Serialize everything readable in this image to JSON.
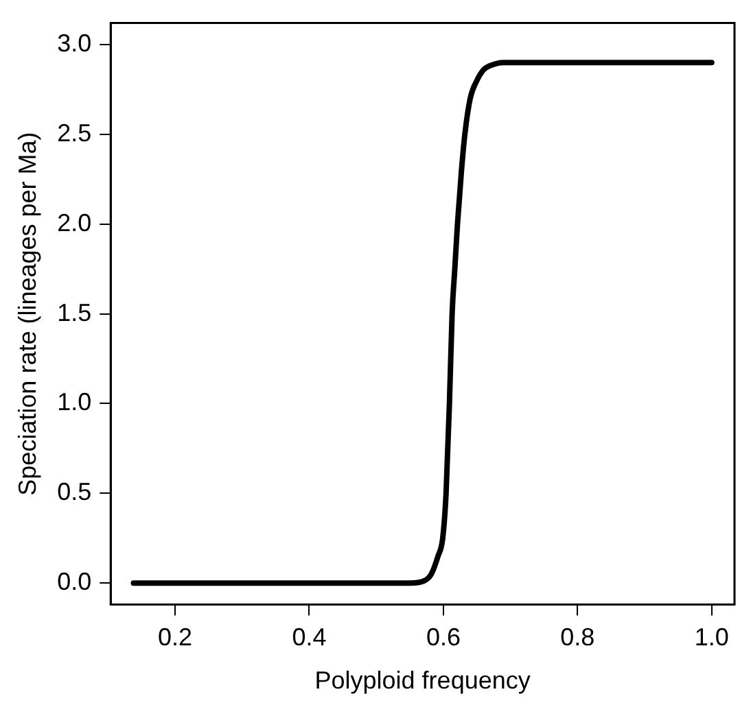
{
  "chart_data": {
    "type": "line",
    "xlabel": "Polyploid frequency",
    "ylabel": "Speciation rate (lineages per Ma)",
    "x": [
      0.138,
      0.55,
      0.57,
      0.582,
      0.592,
      0.599,
      0.604,
      0.609,
      0.613,
      0.617,
      0.621,
      0.627,
      0.632,
      0.64,
      0.65,
      0.66,
      0.668,
      0.69,
      1.0
    ],
    "series": [
      {
        "color": "#000000",
        "values": [
          0,
          0,
          0.01,
          0.05,
          0.15,
          0.25,
          0.5,
          1.0,
          1.5,
          1.75,
          2.0,
          2.3,
          2.5,
          2.7,
          2.8,
          2.86,
          2.88,
          2.9,
          2.9
        ]
      }
    ],
    "xlim": [
      0.104,
      1.034
    ],
    "xticks": [
      0.2,
      0.4,
      0.6,
      0.8,
      {
        "value": 1,
        "label": "1.0"
      }
    ],
    "ylim": [
      -0.12,
      3.12
    ],
    "yticks": [
      {
        "value": 0,
        "label": "0.0"
      },
      0.5,
      {
        "value": 1,
        "label": "1.0"
      },
      1.5,
      {
        "value": 2,
        "label": "2.0"
      },
      2.5,
      {
        "value": 3,
        "label": "3.0"
      }
    ],
    "grid": false,
    "legend": false,
    "marker": "none",
    "line_style": "solid"
  }
}
